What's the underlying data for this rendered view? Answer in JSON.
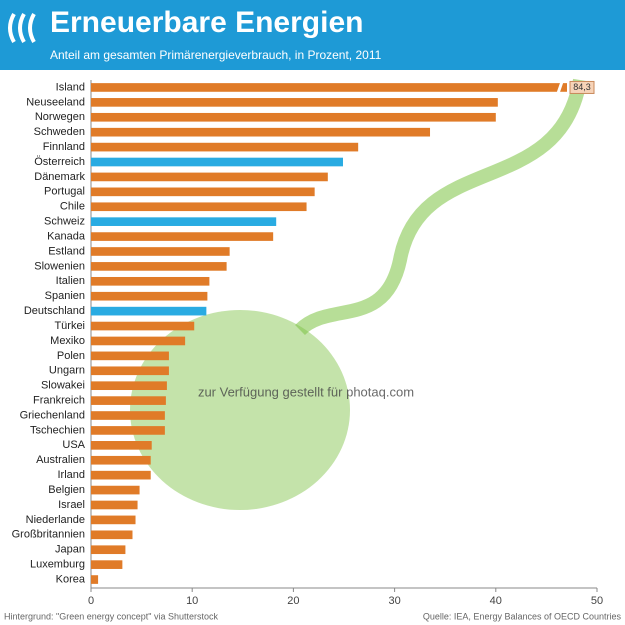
{
  "chart_data": {
    "type": "hbar",
    "title": "Erneuerbare Energien",
    "subtitle": "Anteil am gesamten Primärenergieverbrauch, in Prozent, 2011",
    "annotations": [
      "zur Verfügung gestellt für photaq.com"
    ],
    "source": "Quelle: IEA, Energy Balances of OECD Countries",
    "credit": "Hintergrund: \"Green energy concept\" via Shutterstock",
    "categories": [
      "Island",
      "Neuseeland",
      "Norwegen",
      "Schweden",
      "Finnland",
      "Österreich",
      "Dänemark",
      "Portugal",
      "Chile",
      "Schweiz",
      "Kanada",
      "Estland",
      "Slowenien",
      "Italien",
      "Spanien",
      "Deutschland",
      "Türkei",
      "Mexiko",
      "Polen",
      "Ungarn",
      "Slowakei",
      "Frankreich",
      "Griechenland",
      "Tschechien",
      "USA",
      "Australien",
      "Irland",
      "Belgien",
      "Israel",
      "Niederlande",
      "Großbritannien",
      "Japan",
      "Luxemburg",
      "Korea"
    ],
    "values": [
      84.3,
      40.2,
      40.0,
      33.5,
      26.4,
      24.9,
      23.4,
      22.1,
      21.3,
      18.3,
      18.0,
      13.7,
      13.4,
      11.7,
      11.5,
      11.4,
      10.2,
      9.3,
      7.7,
      7.7,
      7.5,
      7.4,
      7.3,
      7.3,
      6.0,
      5.9,
      5.9,
      4.8,
      4.6,
      4.4,
      4.1,
      3.4,
      3.1,
      0.7
    ],
    "value_labels": [
      "84,3",
      null,
      null,
      null,
      null,
      null,
      null,
      null,
      null,
      null,
      null,
      null,
      null,
      null,
      null,
      null,
      null,
      null,
      null,
      null,
      null,
      null,
      null,
      null,
      null,
      null,
      null,
      null,
      null,
      null,
      null,
      null,
      null,
      null
    ],
    "colors": [
      "#e07b28",
      "#e07b28",
      "#e07b28",
      "#e07b28",
      "#e07b28",
      "#29abe2",
      "#e07b28",
      "#e07b28",
      "#e07b28",
      "#29abe2",
      "#e07b28",
      "#e07b28",
      "#e07b28",
      "#e07b28",
      "#e07b28",
      "#29abe2",
      "#e07b28",
      "#e07b28",
      "#e07b28",
      "#e07b28",
      "#e07b28",
      "#e07b28",
      "#e07b28",
      "#e07b28",
      "#e07b28",
      "#e07b28",
      "#e07b28",
      "#e07b28",
      "#e07b28",
      "#e07b28",
      "#e07b28",
      "#e07b28",
      "#e07b28",
      "#e07b28"
    ],
    "xlim": [
      0,
      50
    ],
    "xticks": [
      0,
      10,
      20,
      30,
      40,
      50
    ],
    "grid": false
  }
}
